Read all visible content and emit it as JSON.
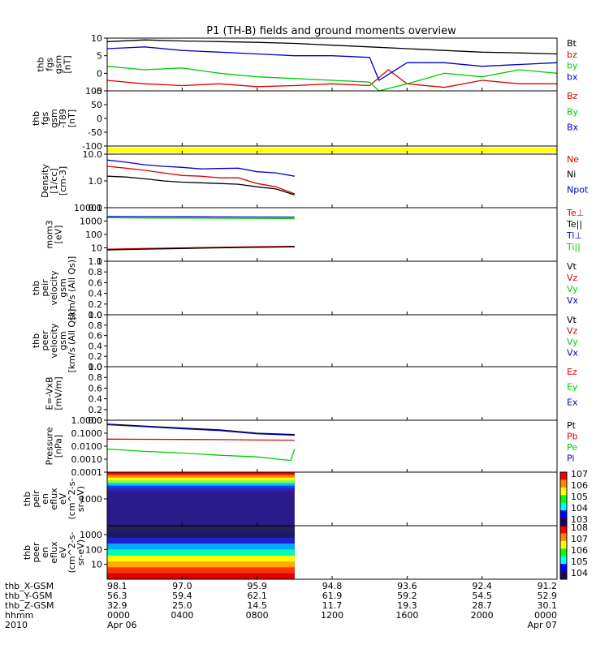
{
  "chart_data": {
    "title": "P1 (TH-B) fields and ground moments overview",
    "type": "line",
    "x_range": [
      "2010-04-06 00:00",
      "2010-04-07 00:00"
    ],
    "data_end": "2010-04-06 10:00",
    "panels": [
      {
        "id": "fgs",
        "type": "line",
        "ylabel": [
          "thb",
          "fgs",
          "gsm",
          "[nT]"
        ],
        "ylim": [
          -5,
          10
        ],
        "yticks": [
          "10",
          "5",
          "0",
          "-5"
        ],
        "legend": [
          {
            "name": "Bt",
            "color": "#000000"
          },
          {
            "name": "bz",
            "color": "#dd0000"
          },
          {
            "name": "by",
            "color": "#00cc00"
          },
          {
            "name": "bx",
            "color": "#0000cc"
          }
        ],
        "series": [
          {
            "name": "Bt",
            "color": "#000000",
            "t": [
              0,
              2,
              4,
              6,
              8,
              10,
              12,
              14,
              16,
              18,
              20,
              22,
              24
            ],
            "y": [
              9,
              9.5,
              9.2,
              9,
              8.8,
              8.5,
              8,
              7.5,
              7,
              6.5,
              6,
              5.8,
              5.5
            ]
          },
          {
            "name": "bz",
            "color": "#dd0000",
            "t": [
              0,
              2,
              4,
              6,
              8,
              10,
              12,
              14,
              15,
              16,
              18,
              20,
              22,
              24
            ],
            "y": [
              -2,
              -3,
              -3.5,
              -3,
              -3.8,
              -3.5,
              -3,
              -3.5,
              1,
              -3,
              -4,
              -2,
              -3,
              -3
            ]
          },
          {
            "name": "by",
            "color": "#00cc00",
            "t": [
              0,
              2,
              4,
              6,
              8,
              10,
              12,
              14,
              14.5,
              16,
              18,
              20,
              22,
              24
            ],
            "y": [
              2,
              1,
              1.5,
              0,
              -1,
              -1.5,
              -2,
              -2.5,
              -5,
              -3,
              0,
              -1,
              1,
              0
            ]
          },
          {
            "name": "bx",
            "color": "#0000cc",
            "t": [
              0,
              2,
              4,
              6,
              8,
              10,
              12,
              14,
              14.5,
              16,
              18,
              20,
              22,
              24
            ],
            "y": [
              7,
              7.5,
              6.5,
              6,
              5.5,
              5,
              5,
              4.5,
              -2,
              3,
              3,
              2,
              2.5,
              3
            ]
          }
        ]
      },
      {
        "id": "fgs_sub",
        "type": "line",
        "ylabel": [
          "thb",
          "fgs",
          "gsm",
          "-T89",
          "[nT]"
        ],
        "ylim": [
          -100,
          100
        ],
        "yticks": [
          "100",
          "50",
          "0",
          "-50",
          "-100"
        ],
        "legend": [
          {
            "name": "Bz",
            "color": "#dd0000"
          },
          {
            "name": "By",
            "color": "#00cc00"
          },
          {
            "name": "Bx",
            "color": "#0000cc"
          }
        ],
        "series": []
      },
      {
        "id": "flag",
        "type": "bar",
        "ylabel": [],
        "band_color": "#ffff00",
        "series": []
      },
      {
        "id": "density",
        "type": "line",
        "log": true,
        "ylabel": [
          "Density",
          "[1/cc]",
          "[cm-3]"
        ],
        "ylim": [
          0.1,
          10
        ],
        "yticks": [
          "10.0",
          "1.0",
          "0.1"
        ],
        "legend": [
          {
            "name": "Ne",
            "color": "#dd0000"
          },
          {
            "name": "Ni",
            "color": "#000000"
          },
          {
            "name": "Npot",
            "color": "#0000cc"
          }
        ],
        "series": [
          {
            "name": "Npot",
            "color": "#0000cc",
            "t": [
              0,
              1,
              2,
              3,
              4,
              5,
              6,
              7,
              8,
              9,
              10
            ],
            "y": [
              6,
              5,
              4,
              3.5,
              3.2,
              2.8,
              2.9,
              3,
              2.2,
              2,
              1.5
            ]
          },
          {
            "name": "Ne",
            "color": "#dd0000",
            "t": [
              0,
              1,
              2,
              3,
              4,
              5,
              6,
              7,
              8,
              9,
              10
            ],
            "y": [
              3.5,
              3,
              2.5,
              2,
              1.6,
              1.5,
              1.3,
              1.3,
              0.8,
              0.6,
              0.33
            ]
          },
          {
            "name": "Ni",
            "color": "#000000",
            "t": [
              0,
              1,
              2,
              3,
              4,
              5,
              6,
              7,
              8,
              9,
              10
            ],
            "y": [
              1.5,
              1.4,
              1.2,
              1,
              0.9,
              0.85,
              0.8,
              0.75,
              0.6,
              0.5,
              0.3
            ]
          }
        ]
      },
      {
        "id": "temp",
        "type": "line",
        "log": true,
        "ylabel": [
          "mom3",
          "[eV]"
        ],
        "ylim": [
          1,
          10000
        ],
        "yticks": [
          "10000",
          "1000",
          "100",
          "10",
          "1"
        ],
        "legend": [
          {
            "name": "Te⊥",
            "color": "#dd0000"
          },
          {
            "name": "Te||",
            "color": "#000000"
          },
          {
            "name": "Ti⊥",
            "color": "#0000cc"
          },
          {
            "name": "Ti||",
            "color": "#00cc00"
          }
        ],
        "series": [
          {
            "name": "Ti⊥",
            "color": "#0000cc",
            "t": [
              0,
              2,
              4,
              6,
              8,
              10
            ],
            "y": [
              2200,
              2150,
              2100,
              2050,
              2000,
              1950
            ]
          },
          {
            "name": "Ti||",
            "color": "#00cc00",
            "t": [
              0,
              2,
              4,
              6,
              8,
              10
            ],
            "y": [
              1800,
              1700,
              1650,
              1600,
              1550,
              1500
            ]
          },
          {
            "name": "Te⊥",
            "color": "#dd0000",
            "t": [
              0,
              2,
              4,
              6,
              8,
              10
            ],
            "y": [
              8,
              9,
              10,
              11,
              12,
              13
            ]
          },
          {
            "name": "Te||",
            "color": "#000000",
            "t": [
              0,
              2,
              4,
              6,
              8,
              10
            ],
            "y": [
              7,
              8,
              9,
              10,
              11,
              12
            ]
          }
        ]
      },
      {
        "id": "peir_v",
        "type": "line",
        "ylabel": [
          "thb",
          "peir",
          "velocity",
          "gsm",
          "[km/s (All Qs)]"
        ],
        "ylim": [
          0,
          1
        ],
        "yticks": [
          "1.0",
          "0.8",
          "0.6",
          "0.4",
          "0.2",
          "0.0"
        ],
        "legend": [
          {
            "name": "Vt",
            "color": "#000000"
          },
          {
            "name": "Vz",
            "color": "#dd0000"
          },
          {
            "name": "Vy",
            "color": "#00cc00"
          },
          {
            "name": "Vx",
            "color": "#0000cc"
          }
        ],
        "series": []
      },
      {
        "id": "peer_v",
        "type": "line",
        "ylabel": [
          "thb",
          "peer",
          "velocity",
          "gsm",
          "[km/s (All Qs)]"
        ],
        "ylim": [
          0,
          1
        ],
        "yticks": [
          "1.0",
          "0.8",
          "0.6",
          "0.4",
          "0.2",
          "0.0"
        ],
        "legend": [
          {
            "name": "Vt",
            "color": "#000000"
          },
          {
            "name": "Vz",
            "color": "#dd0000"
          },
          {
            "name": "Vy",
            "color": "#00cc00"
          },
          {
            "name": "Vx",
            "color": "#0000cc"
          }
        ],
        "series": []
      },
      {
        "id": "efield",
        "type": "line",
        "ylabel": [
          "E=-VxB",
          "[mV/m]"
        ],
        "ylim": [
          0,
          1
        ],
        "yticks": [
          "1.0",
          "0.8",
          "0.6",
          "0.4",
          "0.2",
          "0.0"
        ],
        "legend": [
          {
            "name": "Ez",
            "color": "#dd0000"
          },
          {
            "name": "Ey",
            "color": "#00cc00"
          },
          {
            "name": "Ex",
            "color": "#0000cc"
          }
        ],
        "series": []
      },
      {
        "id": "pressure",
        "type": "line",
        "log": true,
        "ylabel": [
          "Pressure",
          "[nPa]"
        ],
        "ylim": [
          0.0001,
          1
        ],
        "yticks": [
          "1.0000",
          "0.1000",
          "0.0100",
          "0.0010",
          "0.0001"
        ],
        "legend": [
          {
            "name": "Pt",
            "color": "#000000"
          },
          {
            "name": "Pb",
            "color": "#dd0000"
          },
          {
            "name": "Pe",
            "color": "#00cc00"
          },
          {
            "name": "Pi",
            "color": "#0000cc"
          }
        ],
        "series": [
          {
            "name": "Pt",
            "color": "#000000",
            "t": [
              0,
              2,
              4,
              6,
              8,
              10
            ],
            "y": [
              0.5,
              0.35,
              0.25,
              0.18,
              0.1,
              0.08
            ]
          },
          {
            "name": "Pi",
            "color": "#0000cc",
            "t": [
              0,
              2,
              4,
              6,
              8,
              10
            ],
            "y": [
              0.45,
              0.32,
              0.22,
              0.16,
              0.09,
              0.07
            ]
          },
          {
            "name": "Pb",
            "color": "#dd0000",
            "t": [
              0,
              2,
              4,
              6,
              8,
              10
            ],
            "y": [
              0.035,
              0.034,
              0.033,
              0.032,
              0.03,
              0.029
            ]
          },
          {
            "name": "Pe",
            "color": "#00cc00",
            "t": [
              0,
              2,
              4,
              6,
              8,
              9.8,
              10
            ],
            "y": [
              0.006,
              0.004,
              0.003,
              0.002,
              0.0015,
              0.0008,
              0.006
            ]
          }
        ]
      },
      {
        "id": "peir_en",
        "type": "heatmap",
        "ylabel": [
          "thb",
          "peir",
          "en",
          "eflux",
          "eV",
          "(cm^2-s-",
          "sr-eV)"
        ],
        "yticks": [
          "1000"
        ],
        "data_end_hour": 10
      },
      {
        "id": "peer_en",
        "type": "heatmap",
        "ylabel": [
          "thb",
          "peer",
          "en",
          "eflux",
          "eV",
          "(cm^2-s-",
          "sr-eV)"
        ],
        "yticks": [
          "1000",
          "100",
          "10"
        ],
        "data_end_hour": 10
      }
    ],
    "colorbar1": {
      "labels": [
        "10^7",
        "10^6",
        "10^5",
        "10^4",
        "10^3"
      ]
    },
    "colorbar2": {
      "labels": [
        "10^8",
        "10^7",
        "10^6",
        "10^5",
        "10^4"
      ]
    },
    "ephemeris": {
      "rows": [
        {
          "label": "thb_X-GSM",
          "values": [
            "98.1",
            "97.0",
            "95.9",
            "94.8",
            "93.6",
            "92.4",
            "91.2"
          ]
        },
        {
          "label": "thb_Y-GSM",
          "values": [
            "56.3",
            "59.4",
            "62.1",
            "61.9",
            "59.2",
            "54.5",
            "52.9"
          ]
        },
        {
          "label": "thb_Z-GSM",
          "values": [
            "32.9",
            "25.0",
            "14.5",
            "11.7",
            "19.3",
            "28.7",
            "30.1"
          ]
        },
        {
          "label": "hhmm",
          "values": [
            "0000",
            "0400",
            "0800",
            "1200",
            "1600",
            "2000",
            "0000"
          ]
        },
        {
          "label": "2010",
          "values": [
            "Apr 06",
            "",
            "",
            "",
            "",
            "",
            "Apr 07"
          ]
        }
      ]
    }
  }
}
